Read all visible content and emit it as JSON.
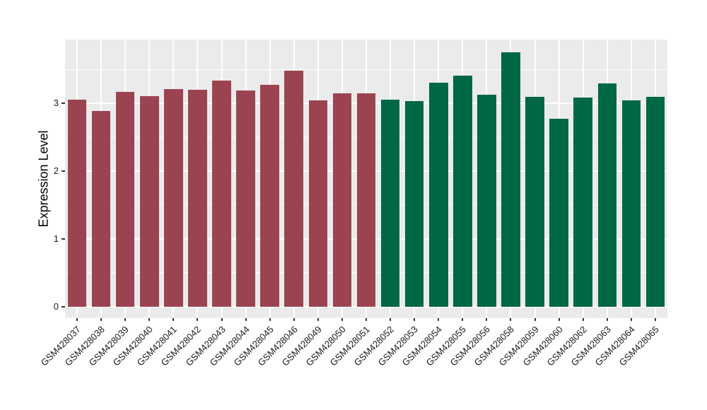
{
  "chart_data": {
    "type": "bar",
    "title": "",
    "xlabel": "",
    "ylabel": "Expression Level",
    "ylim": [
      -0.17,
      3.94
    ],
    "yticks": [
      0,
      1,
      2,
      3
    ],
    "ytick_labels": [
      "0",
      "1",
      "2",
      "3"
    ],
    "grid": "on",
    "legend_position": "none",
    "panel_background": "#EBEBEB",
    "grid_color": "#FFFFFF",
    "tick_color": "#333333",
    "text_color": "#1a1a1a",
    "categories": [
      "GSM428037",
      "GSM428038",
      "GSM428039",
      "GSM428040",
      "GSM428041",
      "GSM428042",
      "GSM428043",
      "GSM428044",
      "GSM428045",
      "GSM428046",
      "GSM428049",
      "GSM428050",
      "GSM428051",
      "GSM428052",
      "GSM428053",
      "GSM428054",
      "GSM428055",
      "GSM428056",
      "GSM428058",
      "GSM428059",
      "GSM428060",
      "GSM428062",
      "GSM428063",
      "GSM428064",
      "GSM428065"
    ],
    "values": [
      3.05,
      2.89,
      3.17,
      3.11,
      3.21,
      3.2,
      3.34,
      3.19,
      3.27,
      3.48,
      3.04,
      3.15,
      3.15,
      3.05,
      3.03,
      3.3,
      3.41,
      3.13,
      3.75,
      3.1,
      2.77,
      3.08,
      3.29,
      3.04,
      3.09
    ],
    "groups": [
      "group1",
      "group1",
      "group1",
      "group1",
      "group1",
      "group1",
      "group1",
      "group1",
      "group1",
      "group1",
      "group1",
      "group1",
      "group1",
      "group2",
      "group2",
      "group2",
      "group2",
      "group2",
      "group2",
      "group2",
      "group2",
      "group2",
      "group2",
      "group2",
      "group2"
    ],
    "group_colors": {
      "group1": "#9C4352",
      "group2": "#006747"
    }
  }
}
